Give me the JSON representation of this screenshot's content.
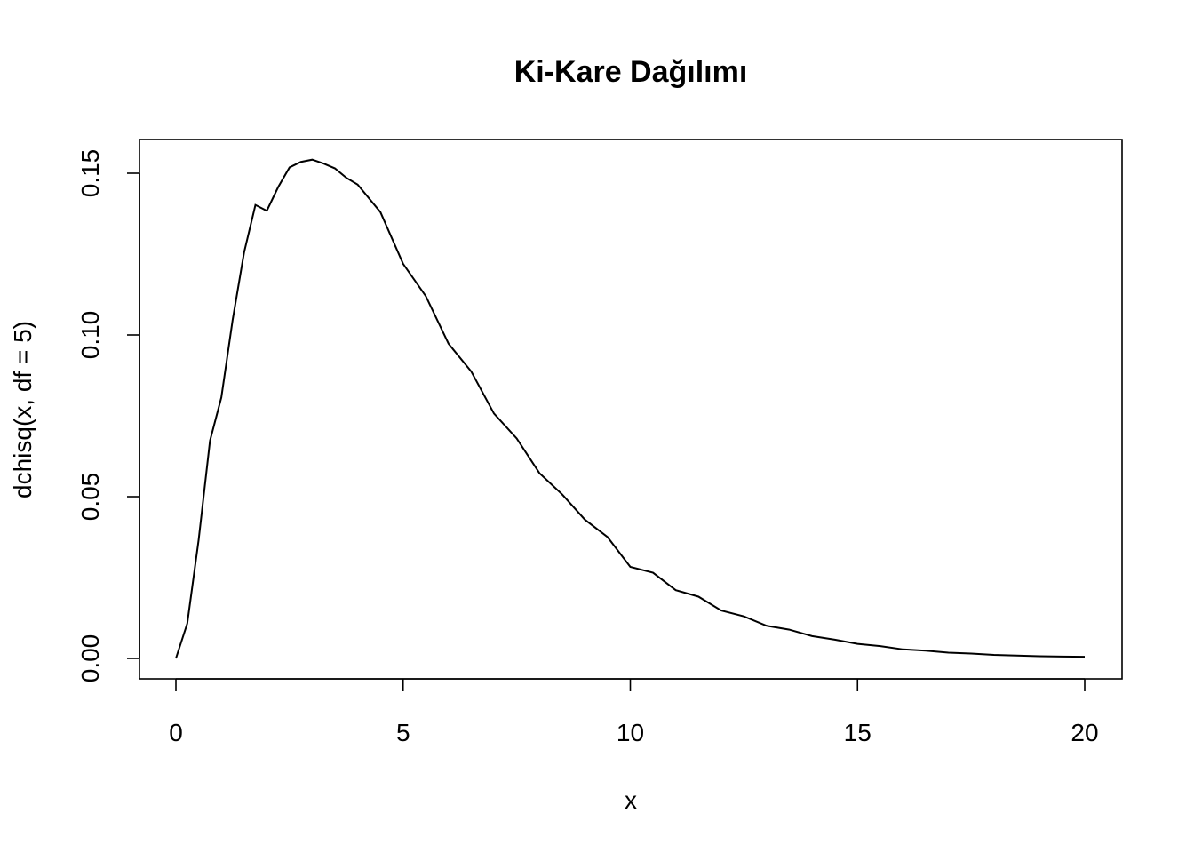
{
  "chart_data": {
    "type": "line",
    "title": "Ki-Kare Dağılımı",
    "xlabel": "x",
    "ylabel": "dchisq(x, df = 5)",
    "xlim": [
      0,
      20
    ],
    "ylim": [
      0,
      0.155
    ],
    "x_ticks": [
      0,
      5,
      10,
      15,
      20
    ],
    "x_tick_labels": [
      "0",
      "5",
      "10",
      "15",
      "20"
    ],
    "y_ticks": [
      0,
      0.05,
      0.1,
      0.15
    ],
    "y_tick_labels": [
      "0.00",
      "0.05",
      "0.10",
      "0.15"
    ],
    "grid": false,
    "series": [
      {
        "x": [
          0,
          0.25,
          0.5,
          0.75,
          1,
          1.25,
          1.5,
          1.75,
          2,
          2.25,
          2.5,
          2.75,
          3,
          3.25,
          3.5,
          3.75,
          4,
          4.5,
          5,
          5.5,
          6,
          6.5,
          7,
          7.5,
          8,
          8.5,
          9,
          9.5,
          10,
          10.5,
          11,
          11.5,
          12,
          12.5,
          13,
          13.5,
          14,
          14.5,
          15,
          15.5,
          16,
          16.5,
          17,
          17.5,
          18,
          18.5,
          19,
          19.5,
          20
        ],
        "values": [
          0,
          0.0108,
          0.0366,
          0.0673,
          0.0807,
          0.1048,
          0.1255,
          0.1402,
          0.1384,
          0.1457,
          0.1518,
          0.1535,
          0.1542,
          0.153,
          0.1515,
          0.1486,
          0.1465,
          0.138,
          0.122,
          0.112,
          0.0973,
          0.0887,
          0.0757,
          0.068,
          0.0573,
          0.0507,
          0.0429,
          0.0375,
          0.0283,
          0.0265,
          0.0211,
          0.0191,
          0.0148,
          0.013,
          0.0101,
          0.0089,
          0.0069,
          0.0058,
          0.0045,
          0.0038,
          0.0028,
          0.0024,
          0.0018,
          0.0015,
          0.0011,
          0.0009,
          0.0007,
          0.0006,
          0.0005
        ]
      }
    ]
  }
}
